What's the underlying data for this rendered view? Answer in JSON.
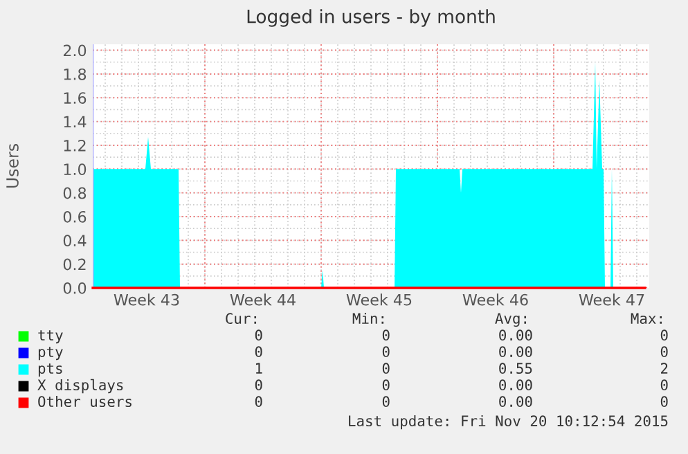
{
  "chart_data": {
    "type": "area",
    "title": "Logged in users - by month",
    "ylabel": "Users",
    "xlim": [
      "2015-10-19T06:00",
      "2015-11-21T18:00"
    ],
    "xticks": [
      {
        "value": "2015-10-22T12:00",
        "label": "Week 43"
      },
      {
        "value": "2015-10-26",
        "label": null
      },
      {
        "value": "2015-10-29T12:00",
        "label": "Week 44"
      },
      {
        "value": "2015-11-02",
        "label": null
      },
      {
        "value": "2015-11-05T12:00",
        "label": "Week 45"
      },
      {
        "value": "2015-11-09",
        "label": null
      },
      {
        "value": "2015-11-12T12:00",
        "label": "Week 46"
      },
      {
        "value": "2015-11-16",
        "label": null
      },
      {
        "value": "2015-11-19T12:00",
        "label": "Week 47"
      }
    ],
    "ylim": [
      0,
      2.05
    ],
    "yticks": [
      {
        "value": 0,
        "label": "0.0"
      },
      {
        "value": 0.2,
        "label": "0.2"
      },
      {
        "value": 0.4,
        "label": "0.4"
      },
      {
        "value": 0.6,
        "label": "0.6"
      },
      {
        "value": 0.8,
        "label": "0.8"
      },
      {
        "value": 1.0,
        "label": "1.0"
      },
      {
        "value": 1.2,
        "label": "1.2"
      },
      {
        "value": 1.4,
        "label": "1.4"
      },
      {
        "value": 1.6,
        "label": "1.6"
      },
      {
        "value": 1.8,
        "label": "1.8"
      },
      {
        "value": 2.0,
        "label": "2.0"
      }
    ],
    "grid": true,
    "legend": "bottom",
    "series": [
      {
        "name": "tty",
        "color": "#00ff00",
        "type": "line"
      },
      {
        "name": "pty",
        "color": "#0000ff",
        "type": "line"
      },
      {
        "name": "pts",
        "color": "#00ffff",
        "x": [
          "2015-10-19T06:00",
          "2015-10-22T10:00",
          "2015-10-22T14:00",
          "2015-10-22T18:00",
          "2015-10-24T10:00",
          "2015-10-24T12:00",
          "2015-11-02T00:00",
          "2015-11-02T02:00",
          "2015-11-02T04:00",
          "2015-11-06T10:00",
          "2015-11-06T12:00",
          "2015-11-10T08:00",
          "2015-11-10T10:00",
          "2015-11-10T12:00",
          "2015-11-18T08:00",
          "2015-11-18T12:00",
          "2015-11-18T14:00",
          "2015-11-18T18:00",
          "2015-11-18T22:00",
          "2015-11-19T00:00",
          "2015-11-19T02:00",
          "2015-11-19T10:00",
          "2015-11-19T12:00",
          "2015-11-19T14:00",
          "2015-11-21T12:00"
        ],
        "values": [
          1,
          1,
          1.27,
          1,
          1,
          0,
          0,
          0.15,
          0,
          0,
          1,
          1,
          0.8,
          1,
          1,
          1.9,
          1,
          1.75,
          1,
          1,
          0,
          0,
          1,
          0,
          0
        ]
      },
      {
        "name": "X displays",
        "color": "#000000",
        "type": "line"
      },
      {
        "name": "Other users",
        "color": "#ff0000",
        "type": "line",
        "x": [
          "2015-10-19T06:00",
          "2015-11-21T12:00"
        ],
        "values": [
          0,
          0
        ]
      }
    ],
    "annotations": [
      "Cur:",
      "Min:",
      "Avg:",
      "Max:",
      "0",
      "0",
      "0.00",
      "0",
      "0",
      "0",
      "0.00",
      "0",
      "1",
      "0",
      "0.55",
      "2",
      "0",
      "0",
      "0.00",
      "0",
      "0",
      "0",
      "0.00",
      "0",
      "Last update: Fri Nov 20 10:12:54 2015"
    ]
  }
}
